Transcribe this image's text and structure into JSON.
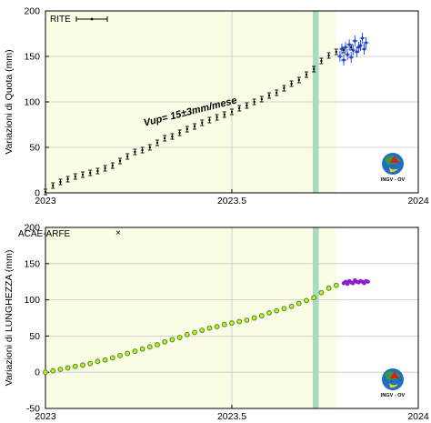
{
  "chart_data": [
    {
      "type": "scatter",
      "ylabel": "Variazioni di Quota (mm)",
      "xlim": [
        2023,
        2024
      ],
      "ylim": [
        0,
        200
      ],
      "xticks": [
        "2023",
        "2023.5",
        "2024"
      ],
      "yticks": [
        "0",
        "50",
        "100",
        "150",
        "200"
      ],
      "grid": true,
      "legend": {
        "entries": [
          "RITE"
        ],
        "placement": "top-left"
      },
      "annotation": "Vup= 15±3mm/mese",
      "highlight_band": {
        "x": [
          2023.717,
          2023.733
        ],
        "color": "#a8dcc0"
      },
      "shaded_region": {
        "x": [
          2023.0,
          2023.78
        ],
        "color": "#fbfbe6"
      },
      "series": [
        {
          "name": "RITE",
          "color": "#000000",
          "error": 3,
          "x": [
            2023.0,
            2023.02,
            2023.04,
            2023.06,
            2023.08,
            2023.1,
            2023.12,
            2023.14,
            2023.16,
            2023.18,
            2023.2,
            2023.22,
            2023.24,
            2023.26,
            2023.28,
            2023.3,
            2023.32,
            2023.34,
            2023.36,
            2023.38,
            2023.4,
            2023.42,
            2023.44,
            2023.46,
            2023.48,
            2023.5,
            2023.52,
            2023.54,
            2023.56,
            2023.58,
            2023.6,
            2023.62,
            2023.64,
            2023.66,
            2023.68,
            2023.7,
            2023.72,
            2023.74,
            2023.76,
            2023.78,
            2023.8,
            2023.82
          ],
          "y": [
            1,
            8,
            12,
            15,
            18,
            20,
            22,
            24,
            27,
            30,
            35,
            40,
            45,
            47,
            50,
            55,
            60,
            62,
            66,
            70,
            73,
            77,
            80,
            83,
            86,
            89,
            93,
            96,
            100,
            103,
            107,
            110,
            115,
            120,
            124,
            130,
            136,
            145,
            151,
            155,
            157,
            160
          ]
        },
        {
          "color": "#1a40d8",
          "x": [
            2023.79,
            2023.795,
            2023.8,
            2023.805,
            2023.81,
            2023.815,
            2023.82,
            2023.825,
            2023.83,
            2023.835,
            2023.84,
            2023.845,
            2023.85,
            2023.855,
            2023.86
          ],
          "y": [
            150,
            158,
            146,
            160,
            152,
            163,
            149,
            157,
            167,
            155,
            160,
            162,
            170,
            158,
            165
          ]
        }
      ]
    },
    {
      "type": "scatter",
      "ylabel": "Variazioni di LUNGHEZZA (mm)",
      "xlim": [
        2023,
        2024
      ],
      "ylim": [
        -50,
        200
      ],
      "xticks": [
        "2023",
        "2023.5",
        "2024"
      ],
      "yticks": [
        "-50",
        "0",
        "50",
        "100",
        "150",
        "200"
      ],
      "grid": true,
      "legend": {
        "entries": [
          "ACAE-ARFE"
        ],
        "placement": "top-left"
      },
      "highlight_band": {
        "x": [
          2023.717,
          2023.733
        ],
        "color": "#a8dcc0"
      },
      "shaded_region": {
        "x": [
          2023.0,
          2023.78
        ],
        "color": "#fbfbe6"
      },
      "series": [
        {
          "name": "ACAE-ARFE",
          "color": "#3aa030",
          "x": [
            2023.0,
            2023.02,
            2023.04,
            2023.06,
            2023.08,
            2023.1,
            2023.12,
            2023.14,
            2023.16,
            2023.18,
            2023.2,
            2023.22,
            2023.24,
            2023.26,
            2023.28,
            2023.3,
            2023.32,
            2023.34,
            2023.36,
            2023.38,
            2023.4,
            2023.42,
            2023.44,
            2023.46,
            2023.48,
            2023.5,
            2023.52,
            2023.54,
            2023.56,
            2023.58,
            2023.6,
            2023.62,
            2023.64,
            2023.66,
            2023.68,
            2023.7,
            2023.72,
            2023.74,
            2023.76,
            2023.78
          ],
          "y": [
            0,
            2,
            4,
            6,
            8,
            10,
            12,
            15,
            17,
            20,
            23,
            26,
            29,
            32,
            35,
            38,
            42,
            45,
            48,
            52,
            55,
            58,
            61,
            63,
            66,
            68,
            70,
            72,
            75,
            78,
            82,
            85,
            88,
            91,
            95,
            99,
            103,
            110,
            116,
            120
          ]
        },
        {
          "color": "#8a1fc8",
          "x": [
            2023.8,
            2023.805,
            2023.81,
            2023.815,
            2023.82,
            2023.825,
            2023.83,
            2023.835,
            2023.84,
            2023.845,
            2023.85,
            2023.855,
            2023.86,
            2023.865
          ],
          "y": [
            123,
            125,
            122,
            126,
            124,
            123,
            127,
            125,
            124,
            126,
            125,
            123,
            126,
            125
          ]
        }
      ]
    }
  ],
  "logo": {
    "text": "INGV - OV"
  }
}
